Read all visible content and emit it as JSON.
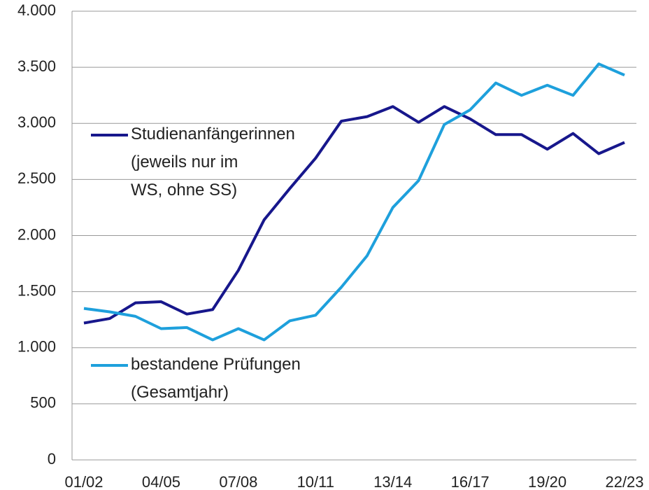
{
  "chart_data": {
    "type": "line",
    "categories": [
      "01/02",
      null,
      null,
      "04/05",
      null,
      null,
      "07/08",
      null,
      null,
      "10/11",
      null,
      null,
      "13/14",
      null,
      null,
      "16/17",
      null,
      null,
      "19/20",
      null,
      null,
      "22/23"
    ],
    "series": [
      {
        "name": "Studienanfängerinnen\n(jeweils nur im\nWS, ohne SS)",
        "color": "#17178c",
        "values": [
          1220,
          1260,
          1400,
          1410,
          1300,
          1340,
          1690,
          2140,
          2420,
          2690,
          3020,
          3060,
          3150,
          3010,
          3150,
          3040,
          2900,
          2900,
          2770,
          2910,
          2730,
          2830
        ]
      },
      {
        "name": "bestandene Prüfungen\n(Gesamtjahr)",
        "color": "#1ea0dc",
        "values": [
          1350,
          1320,
          1280,
          1170,
          1180,
          1070,
          1170,
          1070,
          1240,
          1290,
          1540,
          1820,
          2250,
          2490,
          2990,
          3120,
          3360,
          3250,
          3340,
          3250,
          3530,
          3430
        ]
      }
    ],
    "ylim": [
      0,
      4000
    ],
    "yticks": [
      0,
      500,
      {
        "value": 1000,
        "label": "1.000"
      },
      {
        "value": 1500,
        "label": "1.500"
      },
      {
        "value": 2000,
        "label": "2.000"
      },
      {
        "value": 2500,
        "label": "2.500"
      },
      {
        "value": 3000,
        "label": "3.000"
      },
      {
        "value": 3500,
        "label": "3.500"
      },
      {
        "value": 4000,
        "label": "4.000"
      }
    ],
    "grid": true
  }
}
